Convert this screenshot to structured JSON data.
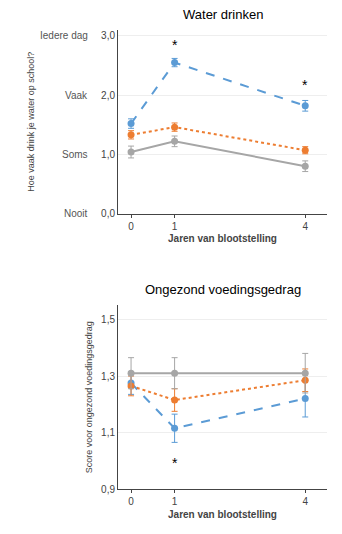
{
  "chart_data": [
    {
      "type": "line",
      "title": "Water drinken",
      "xlabel": "Jaren van blootstelling",
      "ylabel": "Hoe vaak drink je water op school?",
      "x": [
        0,
        1,
        4
      ],
      "xlim": [
        -0.3,
        4.5
      ],
      "xticks": [
        0,
        1,
        4
      ],
      "ylim": [
        0.0,
        3.1
      ],
      "yticks": [
        {
          "value": 0.0,
          "label": "0,0"
        },
        {
          "value": 1.0,
          "label": "1,0"
        },
        {
          "value": 2.0,
          "label": "2,0"
        },
        {
          "value": 3.0,
          "label": "3,0"
        }
      ],
      "grid": true,
      "series": [
        {
          "color": "#5B9BD5",
          "line_style": "dashed",
          "marker": "circle",
          "values": [
            1.52,
            2.55,
            1.82
          ],
          "errors": [
            0.08,
            0.07,
            0.09
          ]
        },
        {
          "color": "#ED7D31",
          "line_style": "dotted",
          "marker": "circle",
          "values": [
            1.33,
            1.46,
            1.07
          ],
          "errors": [
            0.07,
            0.07,
            0.06
          ]
        },
        {
          "color": "#A6A6A6",
          "line_style": "solid",
          "marker": "circle",
          "values": [
            1.04,
            1.22,
            0.8
          ],
          "errors": [
            0.1,
            0.09,
            0.09
          ]
        }
      ],
      "annotations": [
        {
          "text": "Nooit",
          "y": 0.0
        },
        {
          "text": "Soms",
          "y": 1.0
        },
        {
          "text": "Vaak",
          "y": 2.0
        },
        {
          "text": "Iedere dag",
          "y": 3.0
        },
        {
          "text": "*",
          "x": 1,
          "y": 2.68
        },
        {
          "text": "*",
          "x": 4,
          "y": 2.0
        }
      ]
    },
    {
      "type": "line",
      "title": "Ongezond voedingsgedrag",
      "xlabel": "Jaren van blootstelling",
      "ylabel": "Score voor ongezond voedingsgedrag",
      "x": [
        0,
        1,
        4
      ],
      "xlim": [
        -0.3,
        4.5
      ],
      "xticks": [
        0,
        1,
        4
      ],
      "ylim": [
        0.9,
        1.55
      ],
      "yticks": [
        {
          "value": 0.9,
          "label": "0,9"
        },
        {
          "value": 1.1,
          "label": "1,1"
        },
        {
          "value": 1.3,
          "label": "1,3"
        },
        {
          "value": 1.5,
          "label": "1,5"
        }
      ],
      "grid": true,
      "series": [
        {
          "color": "#5B9BD5",
          "line_style": "dashed",
          "marker": "circle",
          "values": [
            1.275,
            1.115,
            1.22
          ],
          "errors": [
            0.04,
            0.05,
            0.065
          ]
        },
        {
          "color": "#ED7D31",
          "line_style": "dotted",
          "marker": "circle",
          "values": [
            1.265,
            1.215,
            1.285
          ],
          "errors": [
            0.035,
            0.04,
            0.04
          ]
        },
        {
          "color": "#A6A6A6",
          "line_style": "solid",
          "marker": "circle",
          "values": [
            1.31,
            1.31,
            1.31
          ],
          "errors": [
            0.055,
            0.055,
            0.07
          ]
        }
      ],
      "annotations": [
        {
          "text": "*",
          "x": 1,
          "y": 0.955
        }
      ]
    }
  ]
}
